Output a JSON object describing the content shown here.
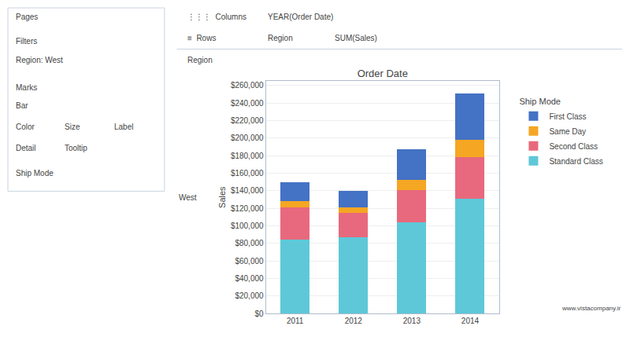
{
  "chart_data": {
    "type": "bar",
    "stacked": true,
    "title": "Order Date",
    "ylabel": "Sales",
    "categories": [
      "2011",
      "2012",
      "2013",
      "2014"
    ],
    "series": [
      {
        "name": "Standard Class",
        "color": "#5ec8d8",
        "values": [
          84000,
          87000,
          104000,
          131000
        ]
      },
      {
        "name": "Second Class",
        "color": "#e8697d",
        "values": [
          37000,
          28000,
          37000,
          47000
        ]
      },
      {
        "name": "Same Day",
        "color": "#f5a623",
        "values": [
          7000,
          6000,
          11000,
          20000
        ]
      },
      {
        "name": "First Class",
        "color": "#4472c4",
        "values": [
          22000,
          19000,
          35000,
          53000
        ]
      }
    ],
    "ylim": [
      0,
      265000
    ],
    "yticks": [
      {
        "value": 0,
        "label": "$0"
      },
      {
        "value": 20000,
        "label": "$20,000"
      },
      {
        "value": 40000,
        "label": "$40,000"
      },
      {
        "value": 60000,
        "label": "$60,000"
      },
      {
        "value": 80000,
        "label": "$80,000"
      },
      {
        "value": 100000,
        "label": "$100,000"
      },
      {
        "value": 120000,
        "label": "$120,000"
      },
      {
        "value": 140000,
        "label": "$140,000"
      },
      {
        "value": 160000,
        "label": "$160,000"
      },
      {
        "value": 180000,
        "label": "$180,000"
      },
      {
        "value": 200000,
        "label": "$200,000"
      },
      {
        "value": 220000,
        "label": "$220,000"
      },
      {
        "value": 240000,
        "label": "$240,000"
      },
      {
        "value": 260000,
        "label": "$260,000"
      }
    ],
    "grid": true,
    "legend": "right",
    "legend_title": "Ship Mode",
    "annotations": [
      "Pages",
      "Filters",
      "Region: West",
      "Marks",
      "Bar",
      "Color",
      "Size",
      "Label",
      "Detail",
      "Tooltip",
      "Ship Mode",
      "⋮⋮⋮  Columns",
      "YEAR(Order Date)",
      "≡  Rows",
      "Region",
      "SUM(Sales)",
      "Region",
      "West",
      "www.vistacompany.ir"
    ]
  }
}
